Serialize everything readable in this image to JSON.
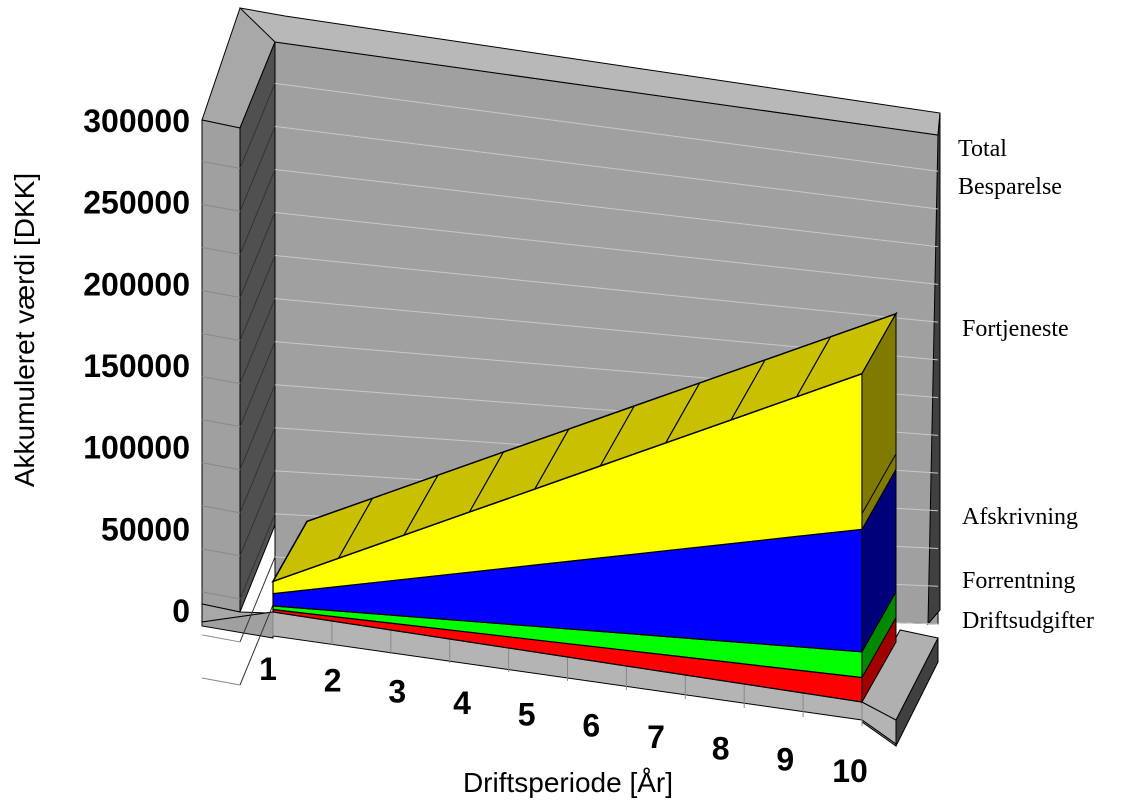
{
  "chart_data": {
    "type": "area",
    "stacked": true,
    "style": "3d",
    "xlabel": "Driftsperiode [År]",
    "ylabel": "Akkumuleret værdi [DKK]",
    "ylim": [
      0,
      300000
    ],
    "ytick_step": 50000,
    "y_ticks": [
      "0",
      "50000",
      "100000",
      "150000",
      "200000",
      "250000",
      "300000"
    ],
    "categories": [
      "1",
      "2",
      "3",
      "4",
      "5",
      "6",
      "7",
      "8",
      "9",
      "10"
    ],
    "legend_position": "right",
    "grid": true,
    "series": [
      {
        "name": "Driftsudgifter",
        "color": "#ff0000",
        "values": [
          2000,
          4000,
          6000,
          8000,
          10000,
          12000,
          14000,
          16000,
          18000,
          20000
        ]
      },
      {
        "name": "Forrentning",
        "color": "#00ff00",
        "values": [
          3000,
          5000,
          7000,
          9000,
          11000,
          13000,
          15000,
          17000,
          19000,
          21000
        ]
      },
      {
        "name": "Afskrivning",
        "color": "#0000ff",
        "values": [
          10000,
          20000,
          30000,
          40000,
          50000,
          60000,
          70000,
          80000,
          90000,
          100000
        ]
      },
      {
        "name": "Fortjeneste",
        "color": "#ffff00",
        "values": [
          10000,
          23000,
          36000,
          49000,
          62000,
          75000,
          88000,
          101000,
          114000,
          127000
        ]
      },
      {
        "name": "Total Besparelse",
        "color": "#c8c000",
        "values": [
          25000,
          51000,
          77000,
          103000,
          129000,
          155000,
          181000,
          207000,
          233000,
          259000
        ]
      }
    ]
  }
}
